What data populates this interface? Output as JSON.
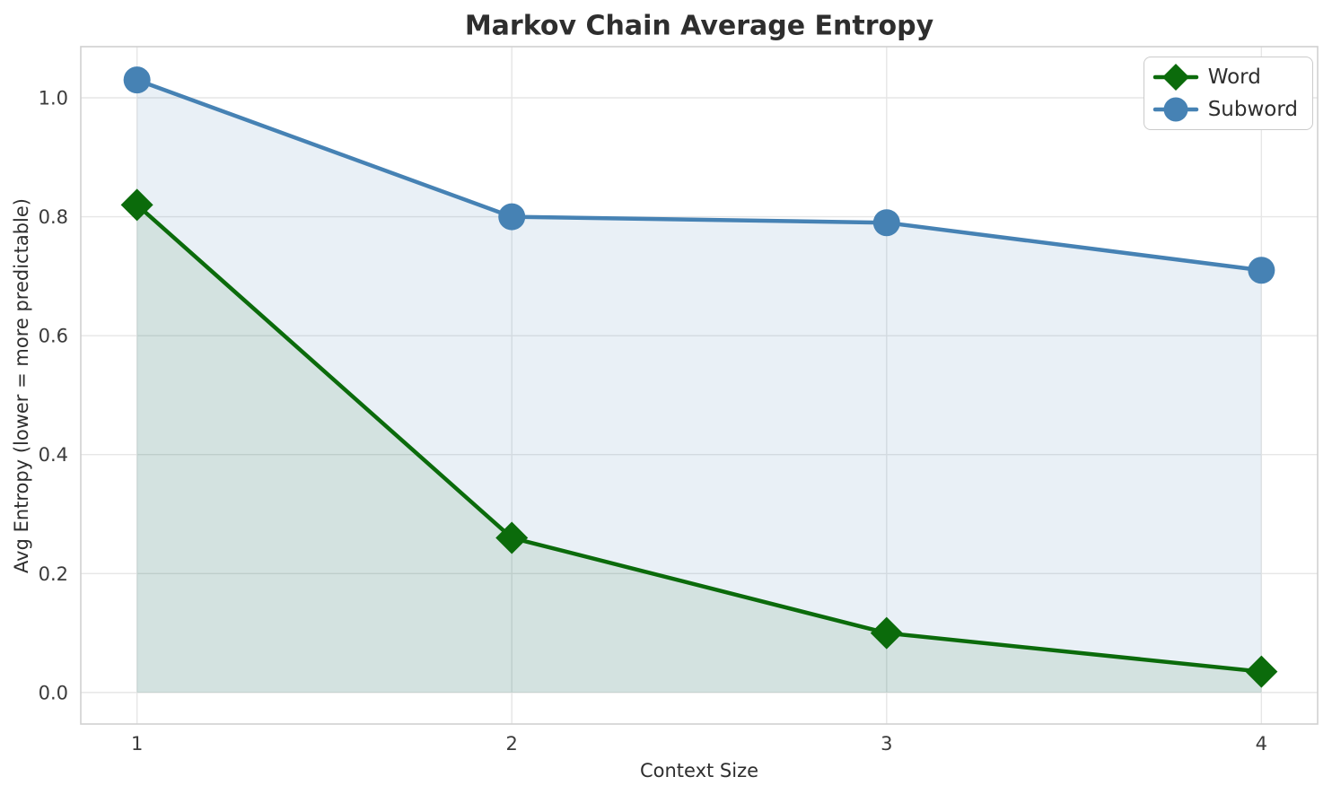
{
  "title": "Markov Chain Average Entropy",
  "chart_data": {
    "type": "line",
    "title": "Markov Chain Average Entropy",
    "xlabel": "Context Size",
    "ylabel": "Avg Entropy (lower = more predictable)",
    "x": [
      1,
      2,
      3,
      4
    ],
    "x_ticks": [
      "1",
      "2",
      "3",
      "4"
    ],
    "y_ticks": [
      "0.0",
      "0.2",
      "0.4",
      "0.6",
      "0.8",
      "1.0"
    ],
    "xlim": [
      0.85,
      4.15
    ],
    "ylim": [
      -0.053,
      1.086
    ],
    "grid": true,
    "legend_position": "upper right",
    "series": [
      {
        "name": "Word",
        "marker": "diamond",
        "color": "#0b6b0b",
        "fill_color": "rgba(11,107,11,0.10)",
        "values": [
          0.82,
          0.26,
          0.1,
          0.035
        ]
      },
      {
        "name": "Subword",
        "marker": "circle",
        "color": "#4682b4",
        "fill_color": "rgba(70,130,180,0.12)",
        "values": [
          1.03,
          0.8,
          0.79,
          0.71
        ]
      }
    ]
  },
  "style": {
    "grid_color": "#e6e6e6",
    "spine_color": "#d0d0d0",
    "tick_color": "#3b3b3b",
    "text_color": "#2e2e2e",
    "background": "#ffffff"
  }
}
